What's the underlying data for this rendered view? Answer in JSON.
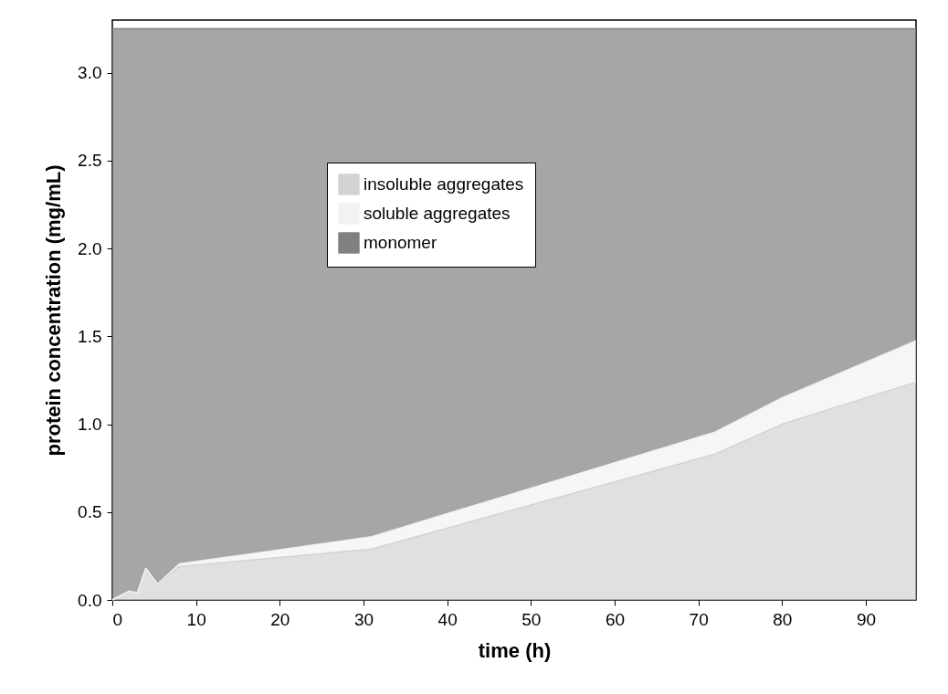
{
  "chart_data": {
    "type": "area",
    "stacked": true,
    "xlabel": "time (h)",
    "ylabel": "protein concentration (mg/mL)",
    "x": [
      0,
      2,
      3,
      4,
      5.4,
      8,
      31,
      72,
      80,
      96
    ],
    "series": [
      {
        "name": "insoluble aggregates",
        "color": "#d3d3d3",
        "values": [
          0,
          0.05,
          0.04,
          0.18,
          0.09,
          0.19,
          0.29,
          0.83,
          1.0,
          1.24
        ]
      },
      {
        "name": "soluble aggregates",
        "color": "#f2f2f2",
        "values": [
          0,
          0,
          0,
          0,
          0,
          0.015,
          0.07,
          0.125,
          0.15,
          0.235
        ]
      },
      {
        "name": "monomer",
        "color": "#808080",
        "values": [
          3.25,
          3.2,
          3.21,
          3.07,
          3.16,
          3.045,
          2.89,
          2.295,
          2.1,
          1.775
        ]
      }
    ],
    "xlim": [
      0,
      96
    ],
    "xticks": [
      0,
      10,
      20,
      30,
      40,
      50,
      60,
      70,
      80,
      90
    ],
    "ylim": [
      0,
      3.3
    ],
    "yticks": [
      {
        "value": 0,
        "label": "0.0"
      },
      {
        "value": 0.5,
        "label": "0.5"
      },
      {
        "value": 1,
        "label": "1.0"
      },
      {
        "value": 1.5,
        "label": "1.5"
      },
      {
        "value": 2,
        "label": "2.0"
      },
      {
        "value": 2.5,
        "label": "2.5"
      },
      {
        "value": 3,
        "label": "3.0"
      }
    ],
    "grid": false,
    "legend": "top"
  }
}
